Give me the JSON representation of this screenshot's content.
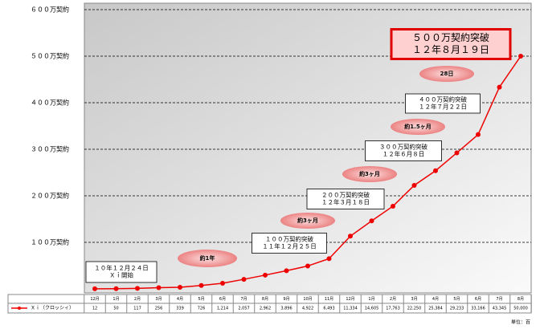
{
  "chart_data": {
    "type": "line",
    "categories": [
      "12月",
      "1月",
      "2月",
      "3月",
      "4月",
      "5月",
      "6月",
      "7月",
      "8月",
      "9月",
      "10月",
      "11月",
      "12月",
      "1月",
      "2月",
      "3月",
      "4月",
      "5月",
      "6月",
      "7月",
      "8月"
    ],
    "series": [
      {
        "name": "Ｘｉ（クロッシィ）",
        "color": "#ee0000",
        "values": [
          12,
          50,
          117,
          256,
          339,
          726,
          1214,
          2057,
          2962,
          3896,
          4922,
          6493,
          11334,
          14605,
          17763,
          22250,
          25384,
          29233,
          33166,
          43345,
          50000
        ],
        "value_labels": [
          "12",
          "50",
          "117",
          "256",
          "339",
          "726",
          "1,214",
          "2,057",
          "2,962",
          "3,896",
          "4,922",
          "6,493",
          "11,334",
          "14,605",
          "17,763",
          "22,250",
          "25,384",
          "29,233",
          "33,166",
          "43,345",
          "50,000"
        ]
      }
    ],
    "ylim": [
      0,
      60000
    ],
    "yticks": [
      {
        "value": 10000,
        "label": "１００万契約"
      },
      {
        "value": 20000,
        "label": "２００万契約"
      },
      {
        "value": 30000,
        "label": "３００万契約"
      },
      {
        "value": 40000,
        "label": "４００万契約"
      },
      {
        "value": 50000,
        "label": "５００万契約"
      },
      {
        "value": 60000,
        "label": "６００万契約"
      }
    ],
    "grid": true,
    "unit": "単位：百",
    "annotations": [
      {
        "kind": "box",
        "lines": [
          "１０年１２月２４日",
          "Ｘｉ開始"
        ]
      },
      {
        "kind": "oval",
        "text": "約1年"
      },
      {
        "kind": "box",
        "lines": [
          "１００万契約突破",
          "１１年１２月２５日"
        ]
      },
      {
        "kind": "oval",
        "text": "約3ヶ月"
      },
      {
        "kind": "box",
        "lines": [
          "２００万契約突破",
          "１２年３月１８日"
        ]
      },
      {
        "kind": "oval",
        "text": "約3ヶ月"
      },
      {
        "kind": "box",
        "lines": [
          "３００万契約突破",
          "１２年６月８日"
        ]
      },
      {
        "kind": "oval",
        "text": "約1.5ヶ月"
      },
      {
        "kind": "box",
        "lines": [
          "４００万契約突破",
          "１２年７月２２日"
        ]
      },
      {
        "kind": "oval",
        "text": "28日"
      },
      {
        "kind": "highlight",
        "lines": [
          "５００万契約突破",
          "１２年８月１９日"
        ]
      }
    ]
  }
}
